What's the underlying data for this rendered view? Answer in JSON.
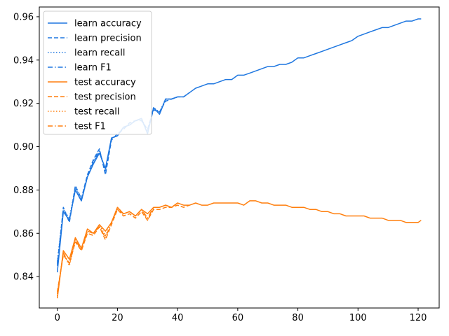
{
  "chart_data": {
    "type": "line",
    "title": "",
    "xlabel": "",
    "ylabel": "",
    "xlim": [
      -6,
      127
    ],
    "ylim": [
      0.8255,
      0.9645
    ],
    "xticks": [
      0,
      20,
      40,
      60,
      80,
      100,
      120
    ],
    "yticks": [
      0.84,
      0.86,
      0.88,
      0.9,
      0.92,
      0.94,
      0.96
    ],
    "ytick_labels": [
      "0.84",
      "0.86",
      "0.88",
      "0.90",
      "0.92",
      "0.94",
      "0.96"
    ],
    "grid": false,
    "legend_position": "top-left",
    "series": [
      {
        "name": "learn accuracy",
        "color": "#1f77e0",
        "dash": "solid",
        "x": [
          0,
          2,
          4,
          6,
          8,
          10,
          12,
          14,
          16,
          18,
          20,
          22,
          24,
          26,
          28,
          30,
          32,
          34,
          36,
          38,
          40,
          42,
          44,
          46,
          48,
          50,
          52,
          54,
          56,
          58,
          60,
          62,
          64,
          66,
          68,
          70,
          72,
          74,
          76,
          78,
          80,
          82,
          84,
          86,
          88,
          90,
          92,
          94,
          96,
          98,
          100,
          102,
          104,
          106,
          108,
          110,
          112,
          114,
          116,
          118,
          120,
          121
        ],
        "y": [
          0.842,
          0.87,
          0.866,
          0.88,
          0.875,
          0.886,
          0.892,
          0.897,
          0.89,
          0.904,
          0.905,
          0.909,
          0.91,
          0.912,
          0.913,
          0.906,
          0.918,
          0.915,
          0.922,
          0.922,
          0.923,
          0.923,
          0.925,
          0.927,
          0.928,
          0.929,
          0.929,
          0.93,
          0.931,
          0.931,
          0.933,
          0.933,
          0.934,
          0.935,
          0.936,
          0.937,
          0.937,
          0.938,
          0.938,
          0.939,
          0.941,
          0.941,
          0.942,
          0.943,
          0.944,
          0.945,
          0.946,
          0.947,
          0.948,
          0.949,
          0.951,
          0.952,
          0.953,
          0.954,
          0.955,
          0.955,
          0.956,
          0.957,
          0.958,
          0.958,
          0.959,
          0.959
        ]
      },
      {
        "name": "learn precision",
        "color": "#1f77e0",
        "dash": "dashed",
        "x": [
          0,
          2,
          4,
          6,
          8,
          10,
          12,
          14,
          16,
          18,
          20,
          22,
          24,
          26,
          28,
          30,
          32,
          34,
          36,
          38,
          40,
          42,
          44
        ],
        "y": [
          0.845,
          0.872,
          0.865,
          0.882,
          0.876,
          0.887,
          0.894,
          0.899,
          0.887,
          0.903,
          0.906,
          0.908,
          0.911,
          0.912,
          0.912,
          0.908,
          0.917,
          0.916,
          0.921,
          0.922,
          0.923,
          0.923,
          0.925
        ]
      },
      {
        "name": "learn recall",
        "color": "#1f77e0",
        "dash": "dotted",
        "x": [
          0,
          2,
          4,
          6,
          8,
          10,
          12,
          14,
          16,
          18,
          20,
          22,
          24,
          26,
          28,
          30,
          32,
          34,
          36,
          38,
          40
        ],
        "y": [
          0.847,
          0.871,
          0.867,
          0.881,
          0.876,
          0.886,
          0.893,
          0.898,
          0.889,
          0.904,
          0.905,
          0.909,
          0.91,
          0.912,
          0.913,
          0.907,
          0.918,
          0.916,
          0.922,
          0.922,
          0.923
        ]
      },
      {
        "name": "learn F1",
        "color": "#1f77e0",
        "dash": "dashdot",
        "x": [
          0,
          2,
          4,
          6,
          8,
          10,
          12,
          14,
          16,
          18,
          20,
          22,
          24,
          26,
          28,
          30,
          32,
          34,
          36,
          38,
          40
        ],
        "y": [
          0.846,
          0.87,
          0.866,
          0.88,
          0.875,
          0.886,
          0.893,
          0.898,
          0.889,
          0.904,
          0.905,
          0.909,
          0.91,
          0.912,
          0.913,
          0.906,
          0.918,
          0.915,
          0.922,
          0.922,
          0.923
        ]
      },
      {
        "name": "test accuracy",
        "color": "#ff7f0e",
        "dash": "solid",
        "x": [
          0,
          2,
          4,
          6,
          8,
          10,
          12,
          14,
          16,
          18,
          20,
          22,
          24,
          26,
          28,
          30,
          32,
          34,
          36,
          38,
          40,
          42,
          44,
          46,
          48,
          50,
          52,
          54,
          56,
          58,
          60,
          62,
          64,
          66,
          68,
          70,
          72,
          74,
          76,
          78,
          80,
          82,
          84,
          86,
          88,
          90,
          92,
          94,
          96,
          98,
          100,
          102,
          104,
          106,
          108,
          110,
          112,
          114,
          116,
          118,
          120,
          121
        ],
        "y": [
          0.83,
          0.852,
          0.848,
          0.858,
          0.853,
          0.862,
          0.86,
          0.864,
          0.861,
          0.865,
          0.872,
          0.869,
          0.87,
          0.868,
          0.871,
          0.869,
          0.872,
          0.872,
          0.873,
          0.872,
          0.874,
          0.873,
          0.873,
          0.874,
          0.873,
          0.873,
          0.874,
          0.874,
          0.874,
          0.874,
          0.874,
          0.873,
          0.875,
          0.875,
          0.874,
          0.874,
          0.873,
          0.873,
          0.873,
          0.872,
          0.872,
          0.872,
          0.871,
          0.871,
          0.87,
          0.87,
          0.869,
          0.869,
          0.868,
          0.868,
          0.868,
          0.868,
          0.867,
          0.867,
          0.867,
          0.866,
          0.866,
          0.866,
          0.865,
          0.865,
          0.865,
          0.866
        ]
      },
      {
        "name": "test precision",
        "color": "#ff7f0e",
        "dash": "dashed",
        "x": [
          0,
          2,
          4,
          6,
          8,
          10,
          12,
          14,
          16,
          18,
          20,
          22,
          24,
          26,
          28,
          30,
          32,
          34,
          36,
          38,
          40,
          42,
          44
        ],
        "y": [
          0.833,
          0.85,
          0.846,
          0.856,
          0.852,
          0.86,
          0.859,
          0.863,
          0.857,
          0.864,
          0.871,
          0.868,
          0.869,
          0.867,
          0.87,
          0.866,
          0.871,
          0.871,
          0.872,
          0.872,
          0.873,
          0.872,
          0.873
        ]
      },
      {
        "name": "test recall",
        "color": "#ff7f0e",
        "dash": "dotted",
        "x": [
          0,
          2,
          4,
          6,
          8,
          10,
          12,
          14,
          16,
          18,
          20,
          22,
          24,
          26,
          28,
          30,
          32,
          34,
          36,
          38,
          40
        ],
        "y": [
          0.831,
          0.851,
          0.845,
          0.857,
          0.853,
          0.861,
          0.86,
          0.864,
          0.859,
          0.865,
          0.872,
          0.869,
          0.87,
          0.868,
          0.871,
          0.866,
          0.872,
          0.872,
          0.873,
          0.872,
          0.874
        ]
      },
      {
        "name": "test F1",
        "color": "#ff7f0e",
        "dash": "dashdot",
        "x": [
          0,
          2,
          4,
          6,
          8,
          10,
          12,
          14,
          16,
          18,
          20,
          22,
          24,
          26,
          28,
          30,
          32,
          34,
          36,
          38,
          40
        ],
        "y": [
          0.832,
          0.851,
          0.846,
          0.857,
          0.852,
          0.861,
          0.86,
          0.863,
          0.858,
          0.865,
          0.871,
          0.869,
          0.87,
          0.868,
          0.871,
          0.867,
          0.872,
          0.872,
          0.873,
          0.872,
          0.874
        ]
      }
    ]
  }
}
